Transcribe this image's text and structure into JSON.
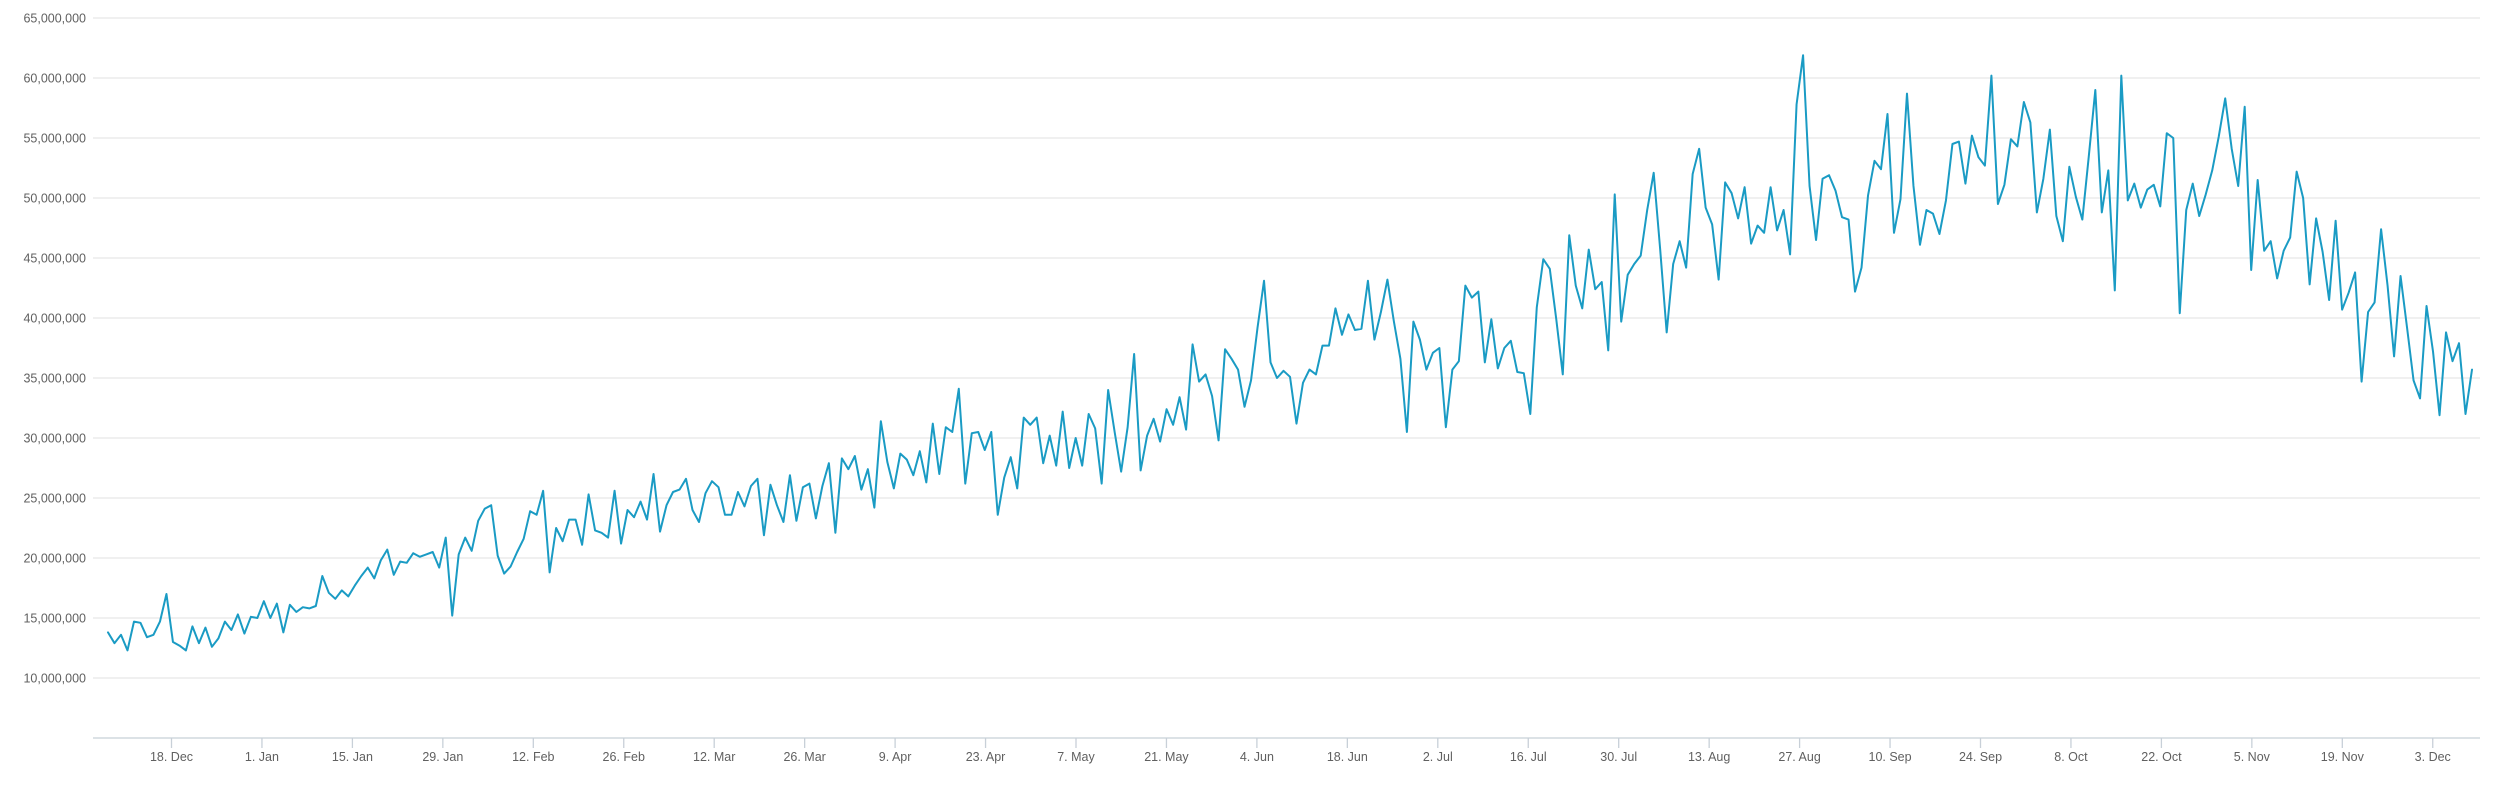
{
  "colors": {
    "series": "#1a9bc4"
  },
  "chart_data": {
    "type": "line",
    "title": "",
    "xlabel": "",
    "ylabel": "",
    "ylim": [
      5000000,
      65000000
    ],
    "y_ticks": [
      10000000,
      15000000,
      20000000,
      25000000,
      30000000,
      35000000,
      40000000,
      45000000,
      50000000,
      55000000,
      60000000,
      65000000
    ],
    "y_tick_labels": [
      "10,000,000",
      "15,000,000",
      "20,000,000",
      "25,000,000",
      "30,000,000",
      "35,000,000",
      "40,000,000",
      "45,000,000",
      "50,000,000",
      "55,000,000",
      "60,000,000",
      "65,000,000"
    ],
    "x_ticks": [
      "18. Dec",
      "1. Jan",
      "15. Jan",
      "29. Jan",
      "12. Feb",
      "26. Feb",
      "12. Mar",
      "26. Mar",
      "9. Apr",
      "23. Apr",
      "7. May",
      "21. May",
      "4. Jun",
      "18. Jun",
      "2. Jul",
      "16. Jul",
      "30. Jul",
      "13. Aug",
      "27. Aug",
      "10. Sep",
      "24. Sep",
      "8. Oct",
      "22. Oct",
      "5. Nov",
      "19. Nov",
      "3. Dec"
    ],
    "grid": true,
    "legend": "none",
    "series": [
      {
        "x_start": "9. Dec",
        "x_step": "1 day",
        "values": [
          13800000,
          12900000,
          13600000,
          12300000,
          14700000,
          14600000,
          13400000,
          13600000,
          14700000,
          17000000,
          13000000,
          12700000,
          12300000,
          14300000,
          12900000,
          14200000,
          12600000,
          13300000,
          14700000,
          14000000,
          15300000,
          13700000,
          15100000,
          15000000,
          16400000,
          15000000,
          16200000,
          13800000,
          16100000,
          15500000,
          15900000,
          15800000,
          16000000,
          18500000,
          17100000,
          16600000,
          17300000,
          16800000,
          17700000,
          18500000,
          19200000,
          18300000,
          19800000,
          20700000,
          18600000,
          19700000,
          19600000,
          20400000,
          20100000,
          20300000,
          20500000,
          19200000,
          21700000,
          15200000,
          20300000,
          21700000,
          20600000,
          23100000,
          24100000,
          24400000,
          20200000,
          18700000,
          19300000,
          20500000,
          21600000,
          23900000,
          23600000,
          25600000,
          18800000,
          22500000,
          21400000,
          23200000,
          23200000,
          21100000,
          25300000,
          22300000,
          22100000,
          21700000,
          25600000,
          21200000,
          24000000,
          23400000,
          24700000,
          23200000,
          27000000,
          22200000,
          24400000,
          25500000,
          25700000,
          26600000,
          24000000,
          23000000,
          25400000,
          26400000,
          25900000,
          23600000,
          23600000,
          25500000,
          24300000,
          26000000,
          26600000,
          21900000,
          26100000,
          24400000,
          23000000,
          26900000,
          23100000,
          25900000,
          26200000,
          23300000,
          26000000,
          27900000,
          22100000,
          28300000,
          27400000,
          28500000,
          25700000,
          27400000,
          24200000,
          31400000,
          28000000,
          25800000,
          28700000,
          28200000,
          26900000,
          28900000,
          26300000,
          31200000,
          27000000,
          30900000,
          30500000,
          34100000,
          26200000,
          30400000,
          30500000,
          29000000,
          30500000,
          23600000,
          26700000,
          28400000,
          25800000,
          31700000,
          31100000,
          31700000,
          27900000,
          30200000,
          27700000,
          32200000,
          27500000,
          30000000,
          27700000,
          32000000,
          30800000,
          26200000,
          34000000,
          30500000,
          27200000,
          30900000,
          37000000,
          27300000,
          30200000,
          31600000,
          29700000,
          32400000,
          31100000,
          33400000,
          30700000,
          37800000,
          34700000,
          35300000,
          33500000,
          29800000,
          37400000,
          36600000,
          35700000,
          32600000,
          34800000,
          39200000,
          43100000,
          36300000,
          35000000,
          35600000,
          35100000,
          31200000,
          34600000,
          35700000,
          35300000,
          37700000,
          37700000,
          40800000,
          38600000,
          40300000,
          39000000,
          39100000,
          43100000,
          38200000,
          40500000,
          43200000,
          39700000,
          36600000,
          30500000,
          39700000,
          38200000,
          35700000,
          37100000,
          37500000,
          30900000,
          35700000,
          36400000,
          42700000,
          41700000,
          42200000,
          36300000,
          39900000,
          35800000,
          37500000,
          38100000,
          35500000,
          35400000,
          32000000,
          40900000,
          44900000,
          44100000,
          39900000,
          35300000,
          46900000,
          42700000,
          40800000,
          45700000,
          42400000,
          43000000,
          37300000,
          50300000,
          39700000,
          43600000,
          44500000,
          45200000,
          49000000,
          52100000,
          45700000,
          38800000,
          44500000,
          46400000,
          44200000,
          52000000,
          54100000,
          49200000,
          47800000,
          43200000,
          51300000,
          50400000,
          48300000,
          50900000,
          46200000,
          47700000,
          47100000,
          50900000,
          47300000,
          49000000,
          45300000,
          57800000,
          61900000,
          51000000,
          46500000,
          51600000,
          51900000,
          50600000,
          48400000,
          48200000,
          42200000,
          44200000,
          50200000,
          53100000,
          52400000,
          57000000,
          47100000,
          49900000,
          58700000,
          51000000,
          46100000,
          49000000,
          48700000,
          47000000,
          49800000,
          54500000,
          54700000,
          51200000,
          55200000,
          53400000,
          52700000,
          60200000,
          49500000,
          51100000,
          54900000,
          54300000,
          58000000,
          56300000,
          48800000,
          51600000,
          55700000,
          48500000,
          46400000,
          52600000,
          50100000,
          48200000,
          53500000,
          59000000,
          48800000,
          52300000,
          42300000,
          60200000,
          49800000,
          51200000,
          49200000,
          50700000,
          51100000,
          49300000,
          55400000,
          55000000,
          40400000,
          49000000,
          51200000,
          48500000,
          50300000,
          52300000,
          55100000,
          58300000,
          54100000,
          51000000,
          57600000,
          44000000,
          51500000,
          45600000,
          46400000,
          43300000,
          45600000,
          46700000,
          52200000,
          50000000,
          42800000,
          48300000,
          45500000,
          41500000,
          48100000,
          40700000,
          42100000,
          43800000,
          34700000,
          40500000,
          41300000,
          47400000,
          42700000,
          36800000,
          43500000,
          39200000,
          34800000,
          33300000,
          41000000,
          37200000,
          31900000,
          38800000,
          36400000,
          37900000,
          32000000,
          35700000
        ]
      }
    ]
  }
}
